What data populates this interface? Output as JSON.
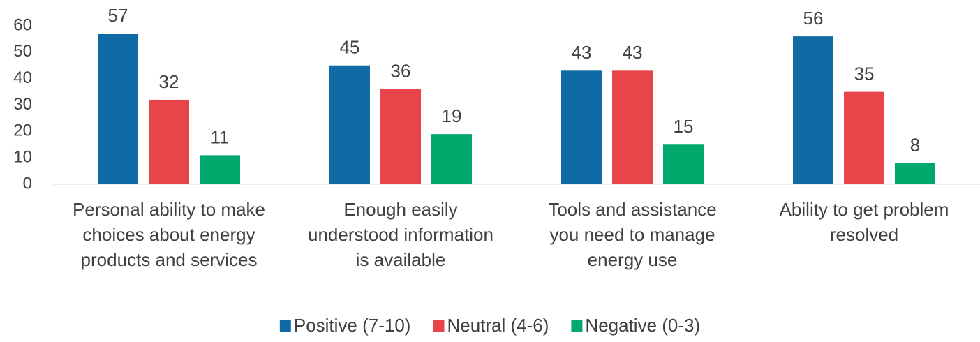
{
  "chart_data": {
    "type": "bar",
    "categories": [
      "Personal ability to make choices about energy products and services",
      "Enough easily understood information is available",
      "Tools and assistance you need to manage energy use",
      "Ability to get problem resolved"
    ],
    "series": [
      {
        "name": "Positive (7-10)",
        "color": "#0f6aa5",
        "values": [
          57,
          45,
          43,
          56
        ]
      },
      {
        "name": "Neutral (4-6)",
        "color": "#e84449",
        "values": [
          32,
          36,
          43,
          35
        ]
      },
      {
        "name": "Negative (0-3)",
        "color": "#00a86b",
        "values": [
          11,
          19,
          15,
          8
        ]
      }
    ],
    "ylim": [
      0,
      60
    ],
    "yticks": [
      0,
      10,
      20,
      30,
      40,
      50,
      60
    ],
    "grid": false,
    "legend": "bottom"
  }
}
